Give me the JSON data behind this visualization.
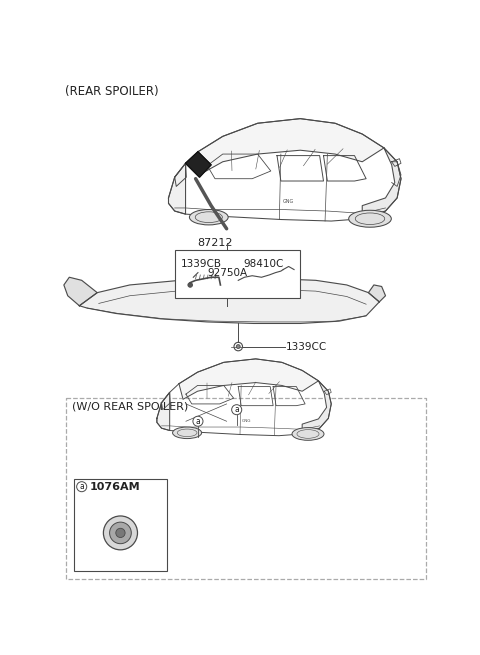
{
  "title_top": "(REAR SPOILER)",
  "title_bottom_box": "(W/O REAR SPOILER)",
  "bg_color": "#ffffff",
  "line_color": "#4a4a4a",
  "box_line_color": "#999999",
  "text_color": "#222222",
  "font_size_title": 8.5,
  "font_size_label": 7.5,
  "font_size_box_title": 8.0,
  "label_87212": "87212",
  "label_1339CB": "1339CB",
  "label_98410C": "98410C",
  "label_92750A": "92750A",
  "label_1339CC": "1339CC",
  "label_1076AM": "1076AM"
}
